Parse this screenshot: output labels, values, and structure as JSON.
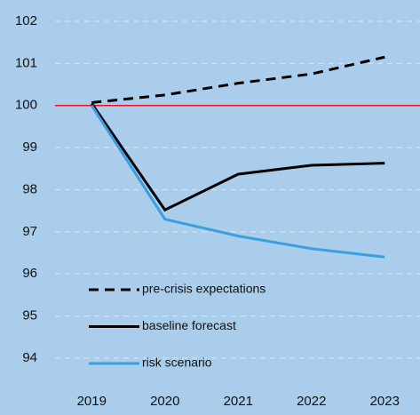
{
  "chart_data": {
    "type": "line",
    "categories": [
      "2019",
      "2020",
      "2021",
      "2022",
      "2023"
    ],
    "series": [
      {
        "name": "pre-crisis expectations",
        "color": "#000000",
        "line_style": "dashed",
        "values": [
          100.07,
          100.25,
          100.53,
          100.75,
          101.15
        ]
      },
      {
        "name": "baseline forecast",
        "color": "#000000",
        "line_style": "solid",
        "values": [
          100.05,
          97.52,
          98.37,
          98.58,
          98.63
        ]
      },
      {
        "name": "risk scenario",
        "color": "#3a9ee0",
        "line_style": "solid",
        "values": [
          100.0,
          97.3,
          96.9,
          96.6,
          96.4
        ]
      }
    ],
    "ylim": [
      94,
      102
    ],
    "yticks": [
      94,
      95,
      96,
      97,
      98,
      99,
      100,
      101,
      102
    ],
    "grid": true,
    "reference_line": {
      "value": 100,
      "color": "#e8121e"
    },
    "legend": "lower left"
  }
}
